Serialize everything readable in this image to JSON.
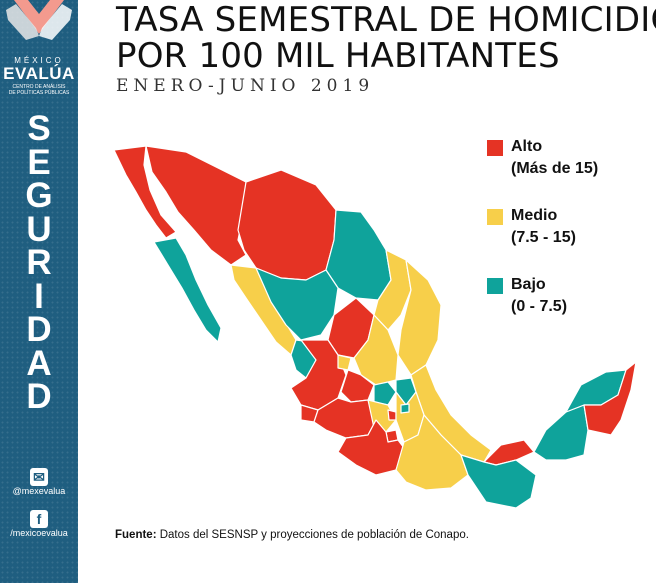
{
  "title": {
    "line1": "TASA SEMESTRAL DE HOMICIDIO",
    "line2": "POR 100 MIL HABITANTES",
    "period": "ENERO-JUNIO 2019"
  },
  "brand": {
    "top": "MÉXICO",
    "name": "EVALÚA",
    "sub1": "CENTRO DE ANÁLISIS",
    "sub2": "DE POLÍTICAS PÚBLICAS",
    "section": [
      "S",
      "E",
      "G",
      "U",
      "R",
      "I",
      "D",
      "A",
      "D"
    ],
    "twitter": "@mexevalua",
    "facebook": "/mexicoevalua",
    "twitter_icon": "twitter-icon",
    "facebook_icon": "facebook-icon"
  },
  "legend": [
    {
      "label": "Alto",
      "range": "(Más de 15)",
      "color": "#e53324"
    },
    {
      "label": "Medio",
      "range": "(7.5 - 15)",
      "color": "#f7cf4a"
    },
    {
      "label": "Bajo",
      "range": "(0 - 7.5)",
      "color": "#0fa39b"
    }
  ],
  "source": {
    "label": "Fuente:",
    "text": " Datos del SESNSP y proyecciones de población de Conapo."
  },
  "colors": {
    "sidebar": "#1f5e80",
    "alto": "#e53324",
    "medio": "#f7cf4a",
    "bajo": "#0fa39b"
  }
}
